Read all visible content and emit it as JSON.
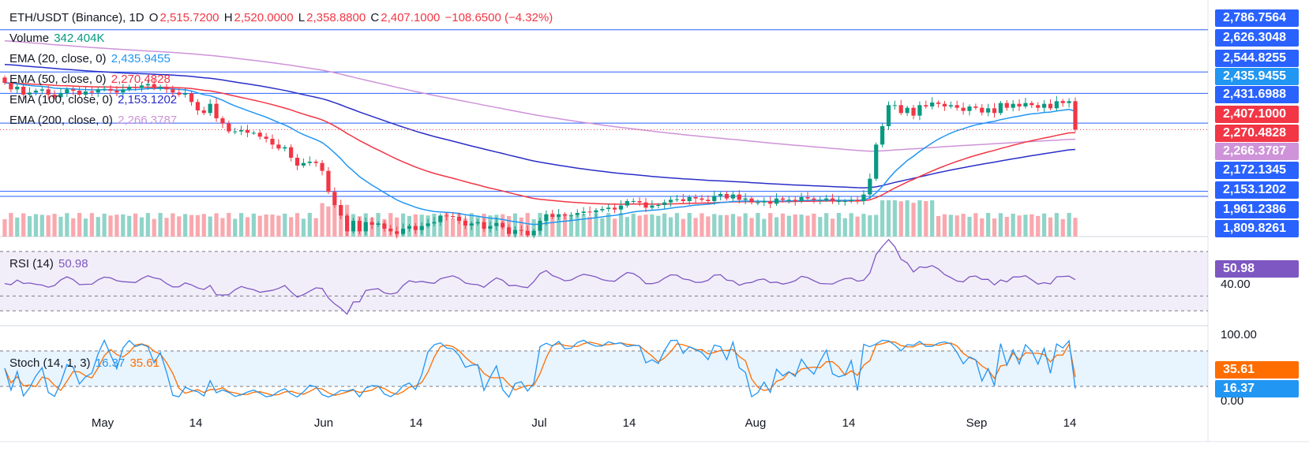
{
  "header": {
    "symbol": "ETH/USDT (Binance), 1D",
    "o_label": "O",
    "o_value": "2,515.7200",
    "h_label": "H",
    "h_value": "2,520.0000",
    "l_label": "L",
    "l_value": "2,358.8800",
    "c_label": "C",
    "c_value": "2,407.1000",
    "change": "−108.6500 (−4.32%)"
  },
  "legend": {
    "volume_label": "Volume",
    "volume_value": "342.404K",
    "ema20_label": "EMA (20, close, 0)",
    "ema20_value": "2,435.9455",
    "ema50_label": "EMA (50, close, 0)",
    "ema50_value": "2,270.4828",
    "ema100_label": "EMA (100, close, 0)",
    "ema100_value": "2,153.1202",
    "ema200_label": "EMA (200, close, 0)",
    "ema200_value": "2,266.3787",
    "rsi_label": "RSI (14)",
    "rsi_value": "50.98",
    "stoch_label": "Stoch (14, 1, 3)",
    "stoch_k_value": "16.37",
    "stoch_d_value": "35.61"
  },
  "colors": {
    "up": "#089981",
    "down": "#f23645",
    "hline": "#2962ff",
    "ema20": "#2196f3",
    "ema50": "#f23645",
    "ema100": "#2a2ec7",
    "ema200": "#ce93d8",
    "rsi": "#7e57c2",
    "stoch_k": "#2196f3",
    "stoch_d": "#ff6d00",
    "vol_up": "#8fd4c8",
    "vol_down": "#f9a8ae"
  },
  "price_labels": [
    {
      "text": "2,786.7564",
      "color": "#2962ff",
      "value": 2786.7564
    },
    {
      "text": "2,626.3048",
      "color": "#2962ff",
      "value": 2626.3048
    },
    {
      "text": "2,544.8255",
      "color": "#2962ff",
      "value": 2544.8255
    },
    {
      "text": "2,435.9455",
      "color": "#2196f3",
      "value": 2435.9455
    },
    {
      "text": "2,431.6988",
      "color": "#2962ff",
      "value": 2431.6988
    },
    {
      "text": "2,407.1000",
      "color": "#f23645",
      "value": 2407.1
    },
    {
      "text": "2,270.4828",
      "color": "#f23645",
      "value": 2270.4828
    },
    {
      "text": "2,266.3787",
      "color": "#ce93d8",
      "value": 2266.3787
    },
    {
      "text": "2,172.1345",
      "color": "#2962ff",
      "value": 2172.1345
    },
    {
      "text": "2,153.1202",
      "color": "#2962ff",
      "value": 2153.1202
    },
    {
      "text": "1,961.2386",
      "color": "#2962ff",
      "value": 1961.2386
    },
    {
      "text": "1,809.8261",
      "color": "#2962ff",
      "value": 1809.8261
    }
  ],
  "rsi_axis": {
    "badge": "50.98",
    "tick": "40.00",
    "badge_color": "#7e57c2"
  },
  "stoch_axis": {
    "top": "100.00",
    "bottom": "0.00",
    "d_badge": "35.61",
    "k_badge": "16.37",
    "d_color": "#ff6d00",
    "k_color": "#2196f3"
  },
  "x_axis": [
    "May",
    "14",
    "Jun",
    "14",
    "Jul",
    "14",
    "Aug",
    "14",
    "Sep",
    "14"
  ],
  "chart_data": {
    "type": "candlestick",
    "timeframe": "1D",
    "x_ticks": [
      "May",
      "14",
      "Jun",
      "14",
      "Jul",
      "14",
      "Aug",
      "14",
      "Sep",
      "14"
    ],
    "price_range": [
      2000,
      2900
    ],
    "horizontal_levels": [
      2786.7564,
      2626.3048,
      2544.8255,
      2431.6988,
      2172.1345,
      2153.1202,
      1961.2386,
      1809.8261
    ],
    "close": [
      2585,
      2560,
      2570,
      2540,
      2548,
      2555,
      2560,
      2540,
      2530,
      2545,
      2560,
      2555,
      2540,
      2552,
      2548,
      2560,
      2562,
      2555,
      2548,
      2560,
      2570,
      2565,
      2575,
      2580,
      2565,
      2570,
      2560,
      2548,
      2540,
      2545,
      2512,
      2480,
      2470,
      2505,
      2450,
      2430,
      2400,
      2400,
      2405,
      2395,
      2395,
      2380,
      2372,
      2350,
      2335,
      2340,
      2300,
      2270,
      2280,
      2285,
      2280,
      2250,
      2170,
      2120,
      2080,
      2020,
      2060,
      2020,
      2055,
      2045,
      2050,
      2030,
      2020,
      2010,
      2030,
      2040,
      2025,
      2040,
      2050,
      2055,
      2080,
      2078,
      2075,
      2060,
      2042,
      2050,
      2055,
      2030,
      2040,
      2052,
      2035,
      2010,
      2025,
      2022,
      2005,
      2022,
      2060,
      2085,
      2075,
      2085,
      2080,
      2082,
      2090,
      2095,
      2092,
      2100,
      2105,
      2110,
      2103,
      2118,
      2135,
      2135,
      2130,
      2110,
      2118,
      2120,
      2130,
      2140,
      2142,
      2135,
      2150,
      2145,
      2140,
      2135,
      2155,
      2162,
      2145,
      2160,
      2140,
      2145,
      2130,
      2130,
      2135,
      2125,
      2145,
      2140,
      2140,
      2135,
      2150,
      2145,
      2140,
      2140,
      2145,
      2135,
      2135,
      2135,
      2140,
      2135,
      2160,
      2220,
      2350,
      2420,
      2500,
      2500,
      2470,
      2490,
      2460,
      2500,
      2495,
      2510,
      2505,
      2495,
      2500,
      2490,
      2478,
      2495,
      2490,
      2472,
      2488,
      2470,
      2508,
      2490,
      2505,
      2495,
      2508,
      2500,
      2490,
      2505,
      2488,
      2515,
      2508,
      2515,
      2407
    ],
    "open": [
      2605,
      2585,
      2560,
      2570,
      2540,
      2548,
      2555,
      2560,
      2540,
      2530,
      2545,
      2560,
      2555,
      2540,
      2552,
      2548,
      2560,
      2562,
      2555,
      2548,
      2560,
      2570,
      2565,
      2575,
      2580,
      2565,
      2570,
      2560,
      2548,
      2540,
      2545,
      2512,
      2480,
      2470,
      2505,
      2450,
      2430,
      2400,
      2400,
      2405,
      2395,
      2395,
      2380,
      2372,
      2350,
      2335,
      2340,
      2300,
      2270,
      2280,
      2285,
      2280,
      2250,
      2170,
      2120,
      2080,
      2020,
      2060,
      2020,
      2055,
      2045,
      2050,
      2030,
      2020,
      2010,
      2030,
      2040,
      2025,
      2040,
      2050,
      2055,
      2080,
      2078,
      2075,
      2060,
      2042,
      2050,
      2055,
      2030,
      2040,
      2052,
      2035,
      2010,
      2025,
      2022,
      2005,
      2022,
      2060,
      2085,
      2075,
      2085,
      2080,
      2082,
      2090,
      2095,
      2092,
      2100,
      2105,
      2110,
      2103,
      2118,
      2135,
      2135,
      2130,
      2110,
      2118,
      2120,
      2130,
      2140,
      2142,
      2135,
      2150,
      2145,
      2140,
      2135,
      2155,
      2162,
      2145,
      2160,
      2140,
      2145,
      2130,
      2130,
      2135,
      2125,
      2145,
      2140,
      2140,
      2135,
      2150,
      2145,
      2140,
      2140,
      2145,
      2135,
      2135,
      2135,
      2140,
      2135,
      2160,
      2220,
      2350,
      2420,
      2500,
      2500,
      2470,
      2490,
      2460,
      2500,
      2495,
      2510,
      2505,
      2495,
      2500,
      2490,
      2478,
      2495,
      2490,
      2472,
      2488,
      2470,
      2508,
      2490,
      2505,
      2495,
      2508,
      2500,
      2490,
      2505,
      2488,
      2515.72,
      2508,
      2515
    ],
    "ema20_last": 2435.9455,
    "ema50_last": 2270.4828,
    "ema100_last": 2153.1202,
    "ema200_last": 2266.3787,
    "rsi_last": 50.98,
    "rsi_range": [
      20,
      80
    ],
    "rsi_bands": [
      30,
      40,
      70
    ],
    "stoch_k_last": 16.37,
    "stoch_d_last": 35.61,
    "stoch_range": [
      0,
      100
    ],
    "stoch_bands": [
      20,
      80
    ]
  }
}
